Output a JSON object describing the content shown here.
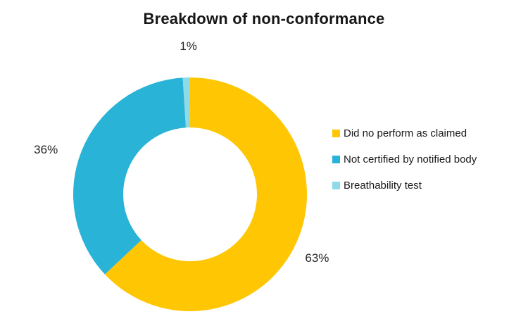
{
  "title": "Breakdown of non-conformance",
  "chart_data": {
    "type": "pie",
    "subtype": "donut",
    "title": "Breakdown of non-conformance",
    "categories": [
      "Did no perform as claimed",
      "Not certified by notified body",
      "Breathability test"
    ],
    "values": [
      63,
      36,
      1
    ],
    "unit": "%",
    "data_labels": [
      "63%",
      "36%",
      "1%"
    ],
    "colors": [
      "#FFC603",
      "#29B3D7",
      "#8FDAE8"
    ],
    "legend_position": "right",
    "legend_entries": [
      "Did no perform as claimed",
      "Not certified by notified body",
      "Breathability test"
    ],
    "start_angle_deg": 0,
    "direction": "clockwise",
    "hole_ratio": 0.57,
    "background_color": "#FFFFFF",
    "text_color": "#262626",
    "title_color": "#161616",
    "grid": false
  }
}
